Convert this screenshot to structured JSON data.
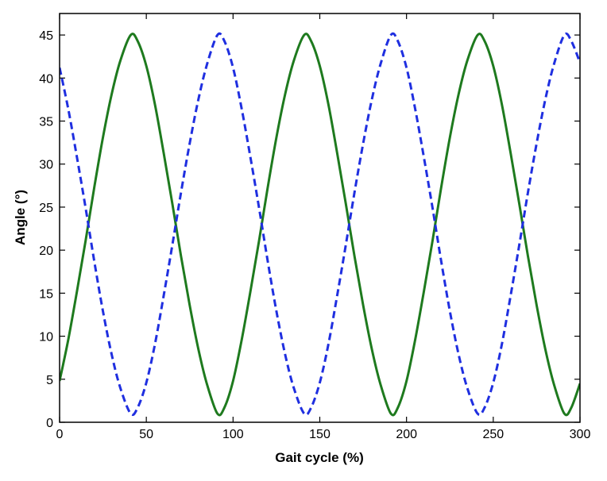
{
  "chart_data": {
    "type": "line",
    "title": "",
    "xlabel": "Gait cycle (%)",
    "ylabel": "Angle (°)",
    "xlim": [
      0,
      300
    ],
    "ylim": [
      0,
      47.5
    ],
    "xticks": [
      0,
      50,
      100,
      150,
      200,
      250,
      300
    ],
    "yticks": [
      0,
      5,
      10,
      15,
      20,
      25,
      30,
      35,
      40,
      45
    ],
    "grid": false,
    "legend": "none",
    "series": [
      {
        "style": "solid",
        "color": "#1e7a1e",
        "x": [
          0,
          5,
          10,
          15,
          20,
          25,
          30,
          35,
          41,
          45,
          50,
          55,
          60,
          65,
          70,
          75,
          80,
          85,
          91,
          95,
          100,
          105,
          110,
          115,
          120,
          125,
          130,
          135,
          141,
          145,
          150,
          155,
          160,
          165,
          170,
          175,
          180,
          185,
          191,
          195,
          200,
          205,
          210,
          215,
          220,
          225,
          230,
          235,
          241,
          245,
          250,
          255,
          260,
          265,
          270,
          275,
          280,
          285,
          291,
          295,
          300
        ],
        "y": [
          4.8,
          9.6,
          15.2,
          21.1,
          27.3,
          33.1,
          38.1,
          42.0,
          45.0,
          44.3,
          41.4,
          36.9,
          31.3,
          25.4,
          19.3,
          13.6,
          8.5,
          4.4,
          1.0,
          1.7,
          4.8,
          9.6,
          15.2,
          21.1,
          27.3,
          33.1,
          38.1,
          42.0,
          45.0,
          44.3,
          41.4,
          36.9,
          31.3,
          25.4,
          19.3,
          13.6,
          8.5,
          4.4,
          1.0,
          1.7,
          4.8,
          9.6,
          15.2,
          21.1,
          27.3,
          33.1,
          38.1,
          42.0,
          45.0,
          44.3,
          41.4,
          36.9,
          31.3,
          25.4,
          19.3,
          13.6,
          8.5,
          4.4,
          1.0,
          1.7,
          4.5
        ]
      },
      {
        "style": "dashed",
        "color": "#1f2fe0",
        "x": [
          0,
          5,
          10,
          15,
          20,
          25,
          30,
          35,
          41,
          45,
          50,
          55,
          60,
          65,
          70,
          75,
          80,
          85,
          91,
          95,
          100,
          105,
          110,
          115,
          120,
          125,
          130,
          135,
          141,
          145,
          150,
          155,
          160,
          165,
          170,
          175,
          180,
          185,
          191,
          195,
          200,
          205,
          210,
          215,
          220,
          225,
          230,
          235,
          241,
          245,
          250,
          255,
          260,
          265,
          270,
          275,
          280,
          285,
          291,
          295,
          300
        ],
        "y": [
          41.2,
          36.4,
          30.8,
          24.9,
          18.7,
          12.9,
          7.9,
          4.0,
          1.0,
          1.7,
          4.6,
          9.1,
          14.7,
          20.6,
          26.7,
          32.4,
          37.5,
          41.6,
          45.0,
          44.3,
          41.2,
          36.4,
          30.8,
          24.9,
          18.7,
          12.9,
          7.9,
          4.0,
          1.0,
          1.7,
          4.6,
          9.1,
          14.7,
          20.6,
          26.7,
          32.4,
          37.5,
          41.6,
          45.0,
          44.3,
          41.2,
          36.4,
          30.8,
          24.9,
          18.7,
          12.9,
          7.9,
          4.0,
          1.0,
          1.7,
          4.6,
          9.1,
          14.7,
          20.6,
          26.7,
          32.4,
          37.5,
          41.6,
          45.0,
          44.3,
          41.8
        ]
      }
    ]
  }
}
